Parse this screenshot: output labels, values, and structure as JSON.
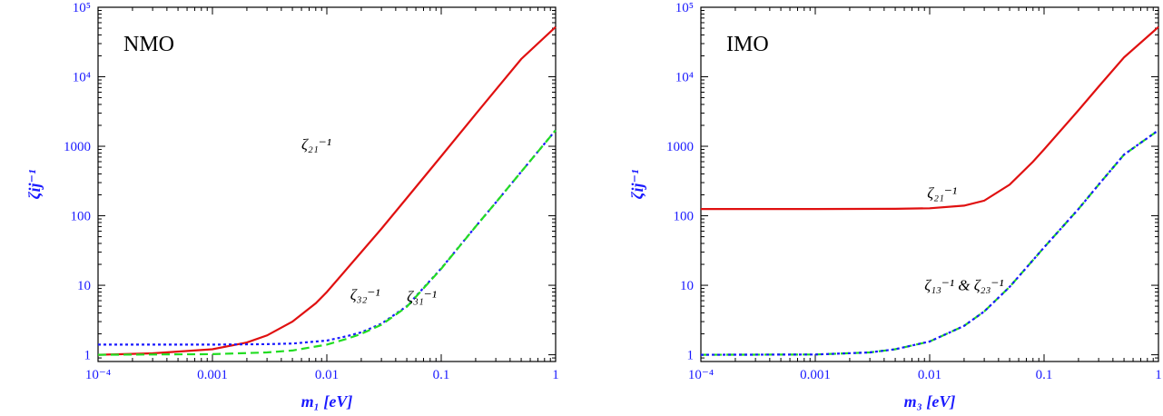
{
  "chart_data": [
    {
      "type": "line",
      "panel_title": "NMO",
      "xlabel": "m₁ [eV]",
      "ylabel": "ζij⁻¹",
      "x_scale": "log",
      "y_scale": "log",
      "xlim": [
        0.0001,
        1
      ],
      "ylim": [
        0.8,
        100000
      ],
      "x_ticks": [
        {
          "value": 0.0001,
          "label": "10⁻⁴"
        },
        {
          "value": 0.001,
          "label": "0.001"
        },
        {
          "value": 0.01,
          "label": "0.01"
        },
        {
          "value": 0.1,
          "label": "0.1"
        },
        {
          "value": 1,
          "label": "1"
        }
      ],
      "y_ticks": [
        {
          "value": 1,
          "label": "1"
        },
        {
          "value": 10,
          "label": "10"
        },
        {
          "value": 100,
          "label": "100"
        },
        {
          "value": 1000,
          "label": "1000"
        },
        {
          "value": 10000,
          "label": "10⁴"
        },
        {
          "value": 100000,
          "label": "10⁵"
        }
      ],
      "series": [
        {
          "name": "ζ₂₁⁻¹",
          "color": "#e01010",
          "dash": "solid",
          "x": [
            0.0001,
            0.0003,
            0.001,
            0.002,
            0.003,
            0.005,
            0.008,
            0.01,
            0.02,
            0.03,
            0.05,
            0.1,
            0.2,
            0.3,
            0.5,
            1
          ],
          "y": [
            1.0,
            1.05,
            1.2,
            1.5,
            1.9,
            3.0,
            5.5,
            8.0,
            30,
            65,
            180,
            720,
            2900,
            6500,
            18000,
            52000
          ]
        },
        {
          "name": "ζ₃₂⁻¹",
          "color": "#1a1aff",
          "dash": "dotted",
          "x": [
            0.0001,
            0.001,
            0.003,
            0.005,
            0.01,
            0.015,
            0.02,
            0.03,
            0.05,
            0.1,
            0.2,
            0.3,
            0.5,
            1
          ],
          "y": [
            1.4,
            1.4,
            1.42,
            1.45,
            1.6,
            1.85,
            2.1,
            2.8,
            5.0,
            17.5,
            70,
            155,
            430,
            1700
          ]
        },
        {
          "name": "ζ₃₁⁻¹",
          "color": "#22dd22",
          "dash": "dashed",
          "x": [
            0.0001,
            0.001,
            0.003,
            0.005,
            0.01,
            0.015,
            0.02,
            0.03,
            0.05,
            0.1,
            0.2,
            0.3,
            0.5,
            1
          ],
          "y": [
            1.0,
            1.02,
            1.08,
            1.15,
            1.4,
            1.7,
            2.0,
            2.7,
            4.9,
            17.3,
            70,
            155,
            430,
            1700
          ]
        }
      ],
      "annotations": [
        {
          "text": "ζ₂₁⁻¹",
          "x": 0.006,
          "y": 900
        },
        {
          "text": "ζ₃₂⁻¹",
          "x": 0.016,
          "y": 6.2
        },
        {
          "text": "ζ₃₁⁻¹",
          "x": 0.05,
          "y": 5.8
        }
      ]
    },
    {
      "type": "line",
      "panel_title": "IMO",
      "xlabel": "m₃ [eV]",
      "ylabel": "ζij⁻¹",
      "x_scale": "log",
      "y_scale": "log",
      "xlim": [
        0.0001,
        1
      ],
      "ylim": [
        0.8,
        100000
      ],
      "x_ticks": [
        {
          "value": 0.0001,
          "label": "10⁻⁴"
        },
        {
          "value": 0.001,
          "label": "0.001"
        },
        {
          "value": 0.01,
          "label": "0.01"
        },
        {
          "value": 0.1,
          "label": "0.1"
        },
        {
          "value": 1,
          "label": "1"
        }
      ],
      "y_ticks": [
        {
          "value": 1,
          "label": "1"
        },
        {
          "value": 10,
          "label": "10"
        },
        {
          "value": 100,
          "label": "100"
        },
        {
          "value": 1000,
          "label": "1000"
        },
        {
          "value": 10000,
          "label": "10⁴"
        },
        {
          "value": 100000,
          "label": "10⁵"
        }
      ],
      "series": [
        {
          "name": "ζ₂₁⁻¹",
          "color": "#e01010",
          "dash": "solid",
          "x": [
            0.0001,
            0.001,
            0.005,
            0.01,
            0.02,
            0.03,
            0.05,
            0.08,
            0.1,
            0.2,
            0.3,
            0.5,
            1
          ],
          "y": [
            125,
            125,
            126,
            128,
            140,
            165,
            280,
            600,
            900,
            3300,
            7200,
            19000,
            52000
          ]
        },
        {
          "name": "ζ₁₃⁻¹",
          "color": "#22dd22",
          "dash": "dashed",
          "x": [
            0.0001,
            0.001,
            0.003,
            0.005,
            0.01,
            0.02,
            0.03,
            0.05,
            0.1,
            0.2,
            0.3,
            0.5,
            1
          ],
          "y": [
            1.0,
            1.01,
            1.08,
            1.2,
            1.55,
            2.6,
            4.2,
            9.5,
            35,
            125,
            280,
            760,
            1700
          ]
        },
        {
          "name": "ζ₂₃⁻¹",
          "color": "#1a1aff",
          "dash": "dotted",
          "x": [
            0.0001,
            0.001,
            0.003,
            0.005,
            0.01,
            0.02,
            0.03,
            0.05,
            0.1,
            0.2,
            0.3,
            0.5,
            1
          ],
          "y": [
            1.0,
            1.01,
            1.08,
            1.2,
            1.55,
            2.6,
            4.2,
            9.5,
            35,
            125,
            280,
            760,
            1700
          ]
        }
      ],
      "annotations": [
        {
          "text": "ζ₂₁⁻¹",
          "x": 0.0095,
          "y": 180
        },
        {
          "text": "ζ₁₃⁻¹  &  ζ₂₃⁻¹",
          "x": 0.009,
          "y": 8.5
        }
      ]
    }
  ]
}
